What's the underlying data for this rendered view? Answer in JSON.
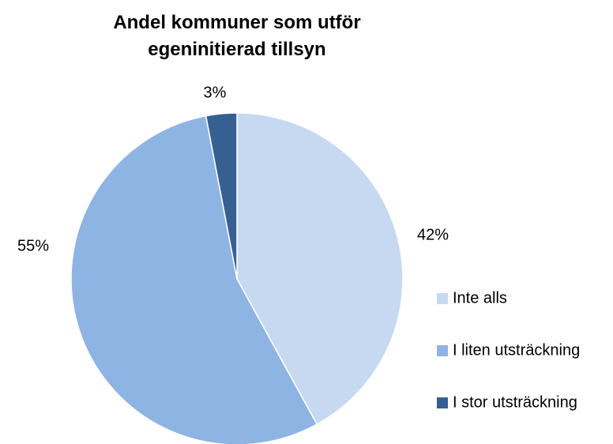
{
  "chart_data": {
    "type": "pie",
    "title": "Andel kommuner som utför egeninitierad tillsyn",
    "categories": [
      "Inte alls",
      "I liten utsträckning",
      "I stor utsträckning"
    ],
    "values": [
      42,
      55,
      3
    ],
    "value_labels": [
      "42%",
      "55%",
      "3%"
    ],
    "colors": [
      "#c6d9f1",
      "#8eb4e3",
      "#376092"
    ],
    "legend": "right"
  }
}
